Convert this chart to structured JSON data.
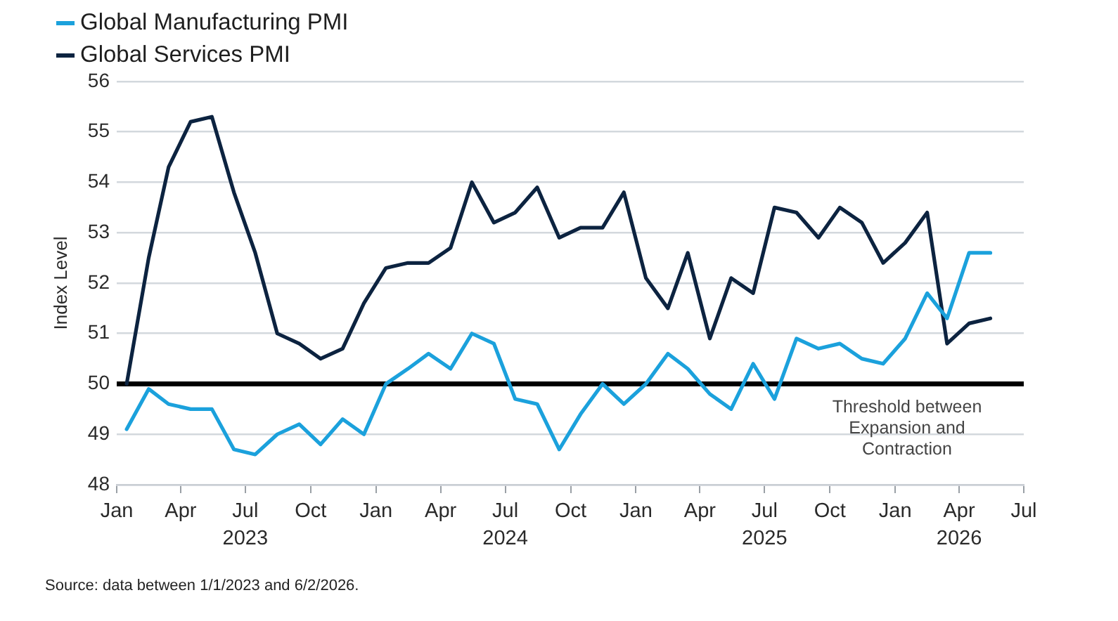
{
  "chart_data": {
    "type": "line",
    "ylabel": "Index Level",
    "x": [
      "2023-01-15",
      "2023-02-15",
      "2023-03-15",
      "2023-04-15",
      "2023-05-15",
      "2023-06-15",
      "2023-07-15",
      "2023-08-15",
      "2023-09-15",
      "2023-10-15",
      "2023-11-15",
      "2023-12-15",
      "2024-01-15",
      "2024-02-15",
      "2024-03-15",
      "2024-04-15",
      "2024-05-15",
      "2024-06-15",
      "2024-07-15",
      "2024-08-15",
      "2024-09-15",
      "2024-10-15",
      "2024-11-15",
      "2024-12-15",
      "2025-01-15",
      "2025-02-15",
      "2025-03-15",
      "2025-04-15",
      "2025-05-15",
      "2025-06-15",
      "2025-07-15",
      "2025-08-15",
      "2025-09-15",
      "2025-10-15",
      "2025-11-15",
      "2025-12-15",
      "2026-01-15",
      "2026-02-15",
      "2026-03-15",
      "2026-04-15",
      "2026-05-15"
    ],
    "series": [
      {
        "name": "Global Manufacturing PMI",
        "color": "#1ba1dc",
        "values": [
          49.1,
          49.9,
          49.6,
          49.5,
          49.5,
          48.7,
          48.6,
          49.0,
          49.2,
          48.8,
          49.3,
          49.0,
          50.0,
          50.3,
          50.6,
          50.3,
          51.0,
          50.8,
          49.7,
          49.6,
          48.7,
          49.4,
          50.0,
          49.6,
          50.0,
          50.6,
          50.3,
          49.8,
          49.5,
          50.4,
          49.7,
          50.9,
          50.7,
          50.8,
          50.5,
          50.4,
          50.9,
          51.8,
          51.3,
          52.6,
          52.6
        ]
      },
      {
        "name": "Global Services PMI",
        "color": "#0c2340",
        "values": [
          50.0,
          52.5,
          54.3,
          55.2,
          55.3,
          53.8,
          52.6,
          51.0,
          50.8,
          50.5,
          50.7,
          51.6,
          52.3,
          52.4,
          52.4,
          52.7,
          54.0,
          53.2,
          53.4,
          53.9,
          52.9,
          53.1,
          53.1,
          53.8,
          52.1,
          51.5,
          52.6,
          50.9,
          52.1,
          51.8,
          53.5,
          53.4,
          52.9,
          53.5,
          53.2,
          52.4,
          52.8,
          53.4,
          50.8,
          51.2,
          51.3
        ]
      }
    ],
    "xlim": [
      "2023-01",
      "2026-07"
    ],
    "xticks": [
      {
        "value": "2023-01",
        "label": "Jan"
      },
      {
        "value": "2023-04",
        "label": "Apr"
      },
      {
        "value": "2023-07",
        "label": "Jul\n2023"
      },
      {
        "value": "2023-10",
        "label": "Oct"
      },
      {
        "value": "2024-01",
        "label": "Jan"
      },
      {
        "value": "2024-04",
        "label": "Apr"
      },
      {
        "value": "2024-07",
        "label": "Jul\n2024"
      },
      {
        "value": "2024-10",
        "label": "Oct"
      },
      {
        "value": "2025-01",
        "label": "Jan"
      },
      {
        "value": "2025-04",
        "label": "Apr"
      },
      {
        "value": "2025-07",
        "label": "Jul\n2025"
      },
      {
        "value": "2025-10",
        "label": "Oct"
      },
      {
        "value": "2026-01",
        "label": "Jan"
      },
      {
        "value": "2026-04",
        "label": "Apr\n2026"
      },
      {
        "value": "2026-07",
        "label": "Jul"
      }
    ],
    "ylim": [
      48,
      56
    ],
    "yticks": [
      48,
      49,
      50,
      51,
      52,
      53,
      54,
      55,
      56
    ],
    "grid": "y",
    "legend": "top left",
    "ref_lines": [
      {
        "axis": "y",
        "value": 50,
        "label": "Threshold between\nExpansion and\nContraction",
        "color": "#000000"
      }
    ],
    "annotations": [
      "Source: data between 1/1/2023 and 6/2/2026."
    ]
  }
}
